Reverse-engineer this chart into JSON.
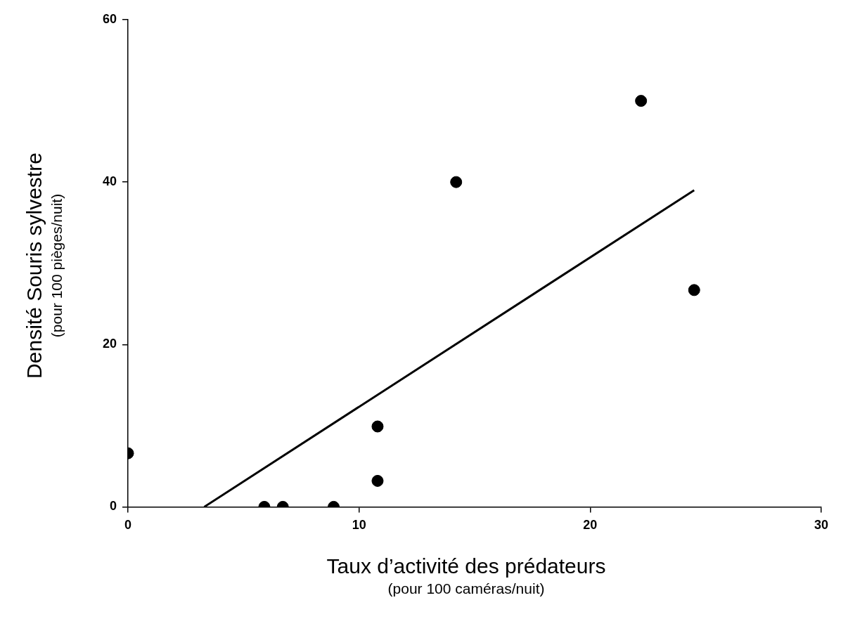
{
  "chart_data": {
    "type": "scatter",
    "xlabel": "Taux d’activité des prédateurs\n(pour 100 caméras/nuit)",
    "ylabel": "Densité Souris sylvestre\n(pour 100 pièges/nuit)",
    "xlim": [
      0,
      30
    ],
    "xticks": [
      0,
      10,
      20,
      30
    ],
    "ylim": [
      0,
      60
    ],
    "yticks": [
      0,
      20,
      40,
      60
    ],
    "series": [
      {
        "color": "#000000",
        "marker": "circle",
        "x": [
          0,
          5.9,
          6.7,
          8.9,
          10.8,
          10.8,
          14.2,
          22.2,
          24.5
        ],
        "values": [
          6.6,
          0,
          0,
          0,
          9.9,
          3.2,
          40,
          50,
          26.7
        ]
      },
      {
        "type": "line",
        "color": "#000000",
        "marker": "none",
        "line_style": "solid",
        "x": [
          3.3,
          24.5
        ],
        "values": [
          0,
          39
        ]
      }
    ]
  }
}
